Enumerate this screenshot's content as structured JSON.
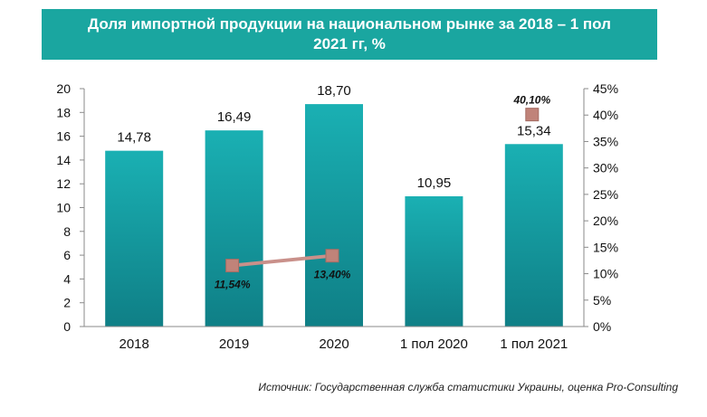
{
  "colors": {
    "banner": "#1aa6a0",
    "bar_top": "#1ab0b3",
    "bar_bottom": "#0f7f86",
    "line": "#c9908a",
    "marker": "#c08379"
  },
  "chart_data": {
    "type": "bar",
    "title": "Доля импортной продукции на национальном рынке за 2018 – 1 пол 2021 гг, %",
    "categories": [
      "2018",
      "2019",
      "2020",
      "1 пол 2020",
      "1 пол 2021"
    ],
    "series": [
      {
        "type": "bar",
        "axis": "left",
        "values": [
          14.78,
          16.49,
          18.7,
          10.95,
          15.34
        ],
        "labels": [
          "14,78",
          "16,49",
          "18,70",
          "10,95",
          "15,34"
        ]
      },
      {
        "type": "line",
        "axis": "right",
        "values": [
          null,
          11.54,
          13.4,
          null,
          40.1
        ],
        "labels": [
          "",
          "11,54%",
          "13,40%",
          "",
          "40,10%"
        ]
      }
    ],
    "y_left": {
      "min": 0,
      "max": 20,
      "step": 2,
      "ticks": [
        "0",
        "2",
        "4",
        "6",
        "8",
        "10",
        "12",
        "14",
        "16",
        "18",
        "20"
      ]
    },
    "y_right": {
      "min": 0,
      "max": 45,
      "step": 5,
      "ticks": [
        "0%",
        "5%",
        "10%",
        "15%",
        "20%",
        "25%",
        "30%",
        "35%",
        "40%",
        "45%"
      ]
    },
    "grid": false,
    "legend": "none"
  },
  "source": "Источник: Государственная служба статистики Украины, оценка Pro-Consulting"
}
